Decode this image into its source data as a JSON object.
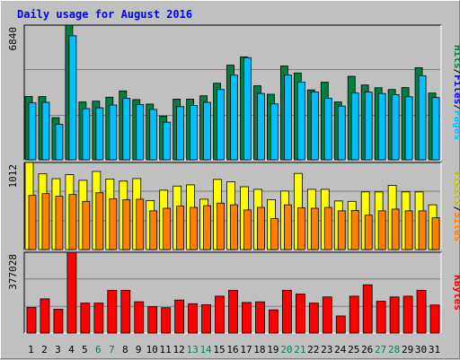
{
  "title": "Daily usage for August 2016",
  "colors": {
    "hits": "#008040",
    "files": "#00c0ff",
    "sites": "#ff8000",
    "visits": "#ffff00",
    "kbytes": "#ff0000",
    "weekend_day": "#00805c",
    "weekday": "#000000",
    "title": "#0000ff"
  },
  "chart_data": [
    {
      "type": "bar",
      "categories": [
        "1",
        "2",
        "3",
        "4",
        "5",
        "6",
        "7",
        "8",
        "9",
        "10",
        "11",
        "12",
        "13",
        "14",
        "15",
        "16",
        "17",
        "18",
        "19",
        "20",
        "21",
        "22",
        "23",
        "24",
        "25",
        "26",
        "27",
        "28",
        "29",
        "30",
        "31"
      ],
      "weekend_days": [
        "6",
        "7",
        "13",
        "14",
        "20",
        "21",
        "27",
        "28"
      ],
      "ymax_label": "6840",
      "ylim": [
        0,
        6840
      ],
      "series": [
        {
          "name": "Hits",
          "values": [
            3220,
            3210,
            2140,
            6840,
            2940,
            2980,
            3180,
            3500,
            3060,
            2830,
            2220,
            3080,
            3080,
            3250,
            3890,
            4810,
            5230,
            3760,
            3330,
            4770,
            4410,
            3550,
            3940,
            2940,
            4240,
            3800,
            3660,
            3570,
            3670,
            4680,
            3390
          ]
        },
        {
          "name": "Files",
          "values": [
            2890,
            2920,
            1810,
            6300,
            2600,
            2640,
            2780,
            3120,
            2810,
            2560,
            1910,
            2700,
            2760,
            2920,
            3570,
            4300,
            5190,
            3370,
            2840,
            4300,
            3940,
            3450,
            3120,
            2730,
            3390,
            3440,
            3370,
            3310,
            3200,
            4270,
            3160
          ]
        },
        {
          "name": "Pages",
          "values": [
            0,
            0,
            0,
            0,
            0,
            0,
            0,
            0,
            0,
            0,
            0,
            0,
            0,
            0,
            0,
            0,
            0,
            0,
            0,
            0,
            0,
            0,
            0,
            0,
            0,
            0,
            0,
            0,
            0,
            0,
            0
          ]
        }
      ],
      "legend": [
        "Pages",
        "Files",
        "Hits"
      ]
    },
    {
      "type": "bar",
      "categories": [
        "1",
        "2",
        "3",
        "4",
        "5",
        "6",
        "7",
        "8",
        "9",
        "10",
        "11",
        "12",
        "13",
        "14",
        "15",
        "16",
        "17",
        "18",
        "19",
        "20",
        "21",
        "22",
        "23",
        "24",
        "25",
        "26",
        "27",
        "28",
        "29",
        "30",
        "31"
      ],
      "ymax_label": "1012",
      "ylim": [
        0,
        1012
      ],
      "series": [
        {
          "name": "Visits",
          "values": [
            1012,
            880,
            824,
            870,
            805,
            908,
            820,
            795,
            825,
            570,
            690,
            738,
            752,
            585,
            815,
            788,
            730,
            700,
            580,
            680,
            885,
            700,
            700,
            565,
            560,
            670,
            670,
            745,
            670,
            670,
            520
          ]
        },
        {
          "name": "Sites",
          "values": [
            630,
            650,
            620,
            640,
            560,
            660,
            590,
            580,
            585,
            450,
            480,
            505,
            490,
            510,
            540,
            520,
            460,
            490,
            360,
            520,
            485,
            480,
            490,
            450,
            455,
            400,
            450,
            470,
            450,
            450,
            370
          ]
        }
      ],
      "legend": [
        "Sites",
        "Visits"
      ]
    },
    {
      "type": "bar",
      "categories": [
        "1",
        "2",
        "3",
        "4",
        "5",
        "6",
        "7",
        "8",
        "9",
        "10",
        "11",
        "12",
        "13",
        "14",
        "15",
        "16",
        "17",
        "18",
        "19",
        "20",
        "21",
        "22",
        "23",
        "24",
        "25",
        "26",
        "27",
        "28",
        "29",
        "30",
        "31"
      ],
      "ymax_label": "377028",
      "ylim": [
        0,
        377028
      ],
      "series": [
        {
          "name": "KBytes",
          "values": [
            119800,
            159800,
            111000,
            377028,
            139700,
            139700,
            199600,
            199600,
            146000,
            122800,
            118500,
            154100,
            137000,
            132500,
            172000,
            199600,
            142700,
            145500,
            108400,
            199600,
            182500,
            139700,
            168500,
            79900,
            172000,
            225300,
            148500,
            168500,
            172000,
            199600,
            131000
          ]
        }
      ],
      "legend": [
        "KBytes"
      ]
    }
  ]
}
